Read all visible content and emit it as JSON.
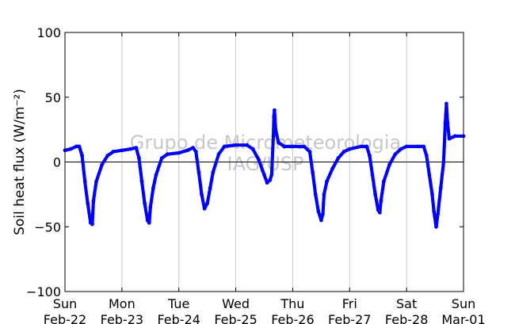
{
  "chart_data": {
    "type": "scatter",
    "ylabel": "Soil heat flux (W/m⁻²)",
    "ylim": [
      -100,
      100
    ],
    "yticks": [
      {
        "value": 100,
        "label": "100"
      },
      {
        "value": 50,
        "label": "50"
      },
      {
        "value": 0,
        "label": "0"
      },
      {
        "value": -50,
        "label": "−50"
      },
      {
        "value": -100,
        "label": "−100"
      }
    ],
    "xlim": [
      0,
      7
    ],
    "x_unit": "days since Feb-22 00:00",
    "xticks": [
      {
        "value": 0,
        "label1": "Sun",
        "label2": "Feb-22"
      },
      {
        "value": 1,
        "label1": "Mon",
        "label2": "Feb-23"
      },
      {
        "value": 2,
        "label1": "Tue",
        "label2": "Feb-24"
      },
      {
        "value": 3,
        "label1": "Wed",
        "label2": "Feb-25"
      },
      {
        "value": 4,
        "label1": "Thu",
        "label2": "Feb-26"
      },
      {
        "value": 5,
        "label1": "Fri",
        "label2": "Feb-27"
      },
      {
        "value": 6,
        "label1": "Sat",
        "label2": "Feb-28"
      },
      {
        "value": 7,
        "label1": "Sun",
        "label2": "Mar-01"
      }
    ],
    "grid": "vertical",
    "zero_line": true,
    "series_color": "#0000ff",
    "watermark": [
      "Grupo de Micrometeorologia",
      "IAG/USP"
    ],
    "series": [
      {
        "points": [
          [
            0.0,
            9
          ],
          [
            0.1,
            10
          ],
          [
            0.2,
            12
          ],
          [
            0.25,
            12
          ],
          [
            0.3,
            5
          ],
          [
            0.35,
            -15
          ],
          [
            0.4,
            -32
          ],
          [
            0.45,
            -47
          ],
          [
            0.48,
            -48
          ],
          [
            0.5,
            -30
          ],
          [
            0.55,
            -15
          ],
          [
            0.65,
            -2
          ],
          [
            0.75,
            5
          ],
          [
            0.85,
            8
          ],
          [
            1.0,
            9
          ],
          [
            1.15,
            10
          ],
          [
            1.25,
            11
          ],
          [
            1.3,
            3
          ],
          [
            1.35,
            -15
          ],
          [
            1.4,
            -32
          ],
          [
            1.45,
            -45
          ],
          [
            1.48,
            -47
          ],
          [
            1.5,
            -35
          ],
          [
            1.55,
            -20
          ],
          [
            1.6,
            -10
          ],
          [
            1.7,
            3
          ],
          [
            1.8,
            6
          ],
          [
            2.0,
            7
          ],
          [
            2.15,
            9
          ],
          [
            2.25,
            11
          ],
          [
            2.3,
            8
          ],
          [
            2.35,
            -8
          ],
          [
            2.4,
            -25
          ],
          [
            2.45,
            -36
          ],
          [
            2.5,
            -32
          ],
          [
            2.55,
            -20
          ],
          [
            2.6,
            -8
          ],
          [
            2.7,
            6
          ],
          [
            2.8,
            12
          ],
          [
            3.0,
            13
          ],
          [
            3.2,
            13
          ],
          [
            3.3,
            10
          ],
          [
            3.4,
            2
          ],
          [
            3.5,
            -10
          ],
          [
            3.55,
            -16
          ],
          [
            3.6,
            -14
          ],
          [
            3.63,
            -10
          ],
          [
            3.66,
            20
          ],
          [
            3.67,
            35
          ],
          [
            3.68,
            40
          ],
          [
            3.7,
            25
          ],
          [
            3.75,
            15
          ],
          [
            3.85,
            12
          ],
          [
            4.0,
            12
          ],
          [
            4.2,
            12
          ],
          [
            4.3,
            8
          ],
          [
            4.35,
            -8
          ],
          [
            4.4,
            -25
          ],
          [
            4.45,
            -38
          ],
          [
            4.5,
            -45
          ],
          [
            4.53,
            -40
          ],
          [
            4.55,
            -25
          ],
          [
            4.6,
            -15
          ],
          [
            4.7,
            -5
          ],
          [
            4.8,
            3
          ],
          [
            4.9,
            8
          ],
          [
            5.0,
            10
          ],
          [
            5.2,
            12
          ],
          [
            5.3,
            12
          ],
          [
            5.35,
            5
          ],
          [
            5.4,
            -10
          ],
          [
            5.45,
            -25
          ],
          [
            5.5,
            -37
          ],
          [
            5.53,
            -39
          ],
          [
            5.55,
            -30
          ],
          [
            5.6,
            -15
          ],
          [
            5.7,
            -2
          ],
          [
            5.8,
            6
          ],
          [
            5.9,
            10
          ],
          [
            6.0,
            12
          ],
          [
            6.2,
            12
          ],
          [
            6.3,
            12
          ],
          [
            6.35,
            5
          ],
          [
            6.4,
            -10
          ],
          [
            6.45,
            -25
          ],
          [
            6.48,
            -38
          ],
          [
            6.52,
            -50
          ],
          [
            6.55,
            -40
          ],
          [
            6.6,
            -20
          ],
          [
            6.65,
            0
          ],
          [
            6.68,
            30
          ],
          [
            6.7,
            45
          ],
          [
            6.72,
            30
          ],
          [
            6.75,
            18
          ],
          [
            6.85,
            20
          ],
          [
            7.0,
            20
          ]
        ]
      }
    ]
  }
}
